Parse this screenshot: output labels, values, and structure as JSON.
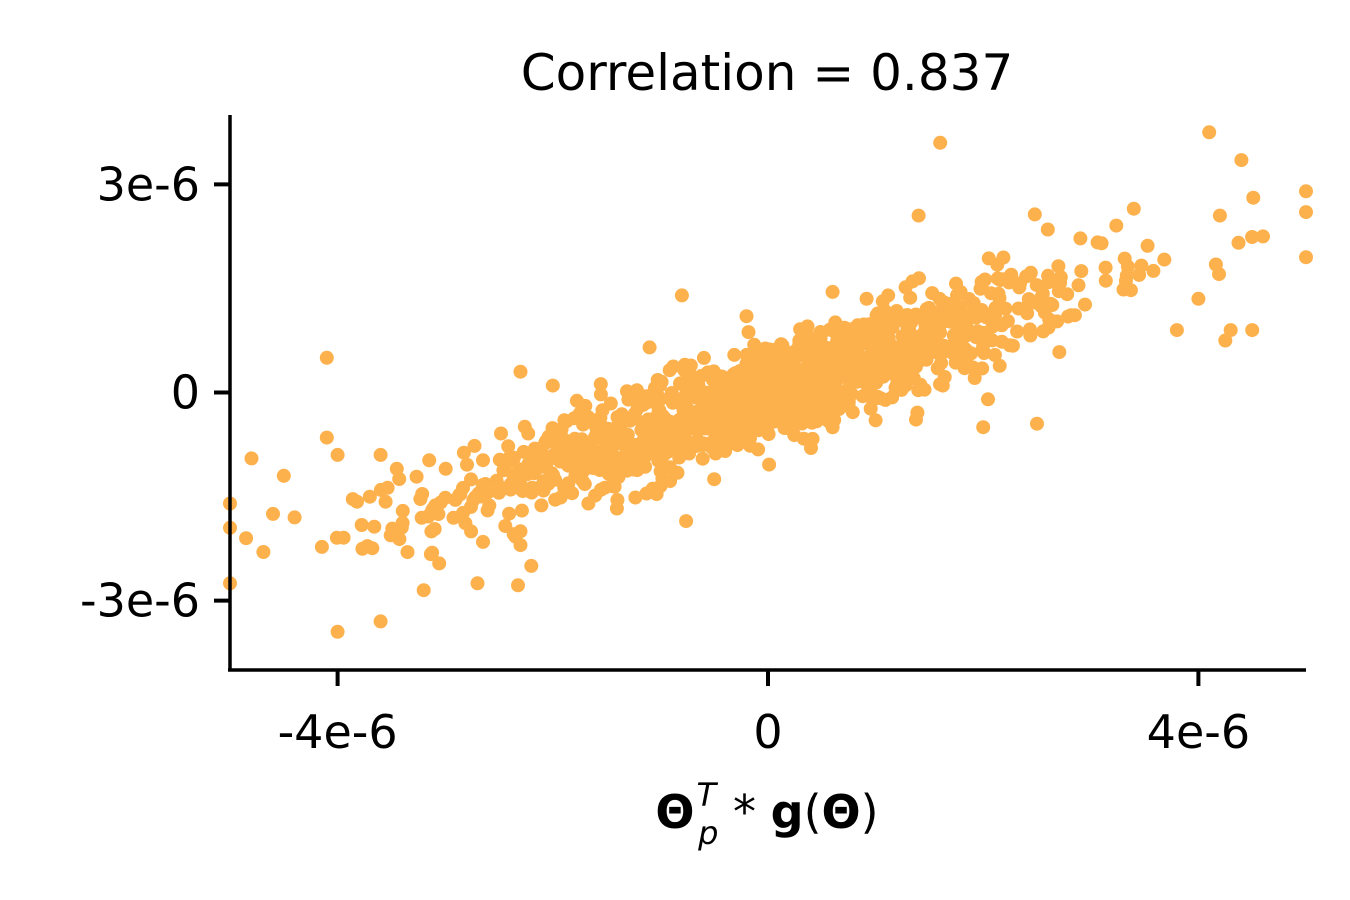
{
  "chart_data": {
    "type": "scatter",
    "title": "Correlation = 0.837",
    "xlabel": "Θp^T * g(Θ)",
    "xlabel_parts": {
      "theta": "Θ",
      "sub": "p",
      "sup": "T",
      "op": " * ",
      "g": "g",
      "open": "(",
      "theta2": "Θ",
      "close": ")"
    },
    "ylabel": "",
    "xlim": [
      -5e-06,
      5e-06
    ],
    "ylim": [
      -4e-06,
      4e-06
    ],
    "xticks": [
      {
        "value": -4e-06,
        "label": "-4e-6"
      },
      {
        "value": 0,
        "label": "0"
      },
      {
        "value": 4e-06,
        "label": "4e-6"
      }
    ],
    "yticks": [
      {
        "value": 3e-06,
        "label": "3e-6"
      },
      {
        "value": 0,
        "label": "0"
      },
      {
        "value": -3e-06,
        "label": "-3e-6"
      }
    ],
    "grid": false,
    "color": "#fdb14c",
    "correlation": 0.837,
    "n_points": 1200,
    "x_mean": 0,
    "x_std": 1.5e-06,
    "slope": 0.51,
    "intercept": 0,
    "residual_std": 3.8e-07,
    "outliers": [
      [
        4.1e-06,
        3.75e-06
      ],
      [
        4.4e-06,
        3.35e-06
      ],
      [
        1.6e-06,
        3.6e-06
      ],
      [
        1.4e-06,
        2.55e-06
      ],
      [
        4.2e-06,
        2.55e-06
      ],
      [
        4.6e-06,
        2.25e-06
      ],
      [
        5e-06,
        2.9e-06
      ],
      [
        5e-06,
        2.6e-06
      ],
      [
        5e-06,
        1.95e-06
      ],
      [
        3.4e-06,
        2.65e-06
      ],
      [
        3.1e-06,
        2.15e-06
      ],
      [
        2.6e-06,
        2.35e-06
      ],
      [
        -8e-07,
        1.4e-06
      ],
      [
        6e-07,
        1.45e-06
      ],
      [
        -2e-07,
        1.1e-06
      ],
      [
        4e-06,
        1.35e-06
      ],
      [
        4.3e-06,
        9e-07
      ],
      [
        4.5e-06,
        9e-07
      ],
      [
        4.25e-06,
        7.5e-07
      ],
      [
        3.8e-06,
        9e-07
      ],
      [
        -4.1e-06,
        5e-07
      ],
      [
        -2.3e-06,
        3e-07
      ],
      [
        -2e-06,
        1e-07
      ],
      [
        -1.1e-06,
        6.5e-07
      ],
      [
        -4.1e-06,
        -6.5e-07
      ],
      [
        -4.8e-06,
        -9.5e-07
      ],
      [
        -4.5e-06,
        -1.2e-06
      ],
      [
        -4e-06,
        -9e-07
      ],
      [
        -3.6e-06,
        -9e-07
      ],
      [
        -3.45e-06,
        -1.1e-06
      ],
      [
        -4.4e-06,
        -1.8e-06
      ],
      [
        -4.6e-06,
        -1.75e-06
      ],
      [
        -4.85e-06,
        -2.1e-06
      ],
      [
        -5e-06,
        -1.6e-06
      ],
      [
        -5e-06,
        -1.95e-06
      ],
      [
        -5e-06,
        -2.75e-06
      ],
      [
        -4e-06,
        -3.45e-06
      ],
      [
        -3.6e-06,
        -3.3e-06
      ],
      [
        -3.2e-06,
        -2.85e-06
      ],
      [
        -3.35e-06,
        -2.3e-06
      ],
      [
        -2.7e-06,
        -2.75e-06
      ],
      [
        -2.2e-06,
        -2.5e-06
      ],
      [
        -2.3e-06,
        -2e-06
      ],
      [
        -2.3e-06,
        -2.2e-06
      ],
      [
        -1.4e-06,
        -1.55e-06
      ],
      [
        -1e-06,
        -1.35e-06
      ],
      [
        -5e-07,
        -1.25e-06
      ],
      [
        4e-07,
        -8e-07
      ],
      [
        2e-06,
        -5e-07
      ],
      [
        2.5e-06,
        -4.5e-07
      ],
      [
        1e-06,
        -4e-07
      ]
    ]
  }
}
